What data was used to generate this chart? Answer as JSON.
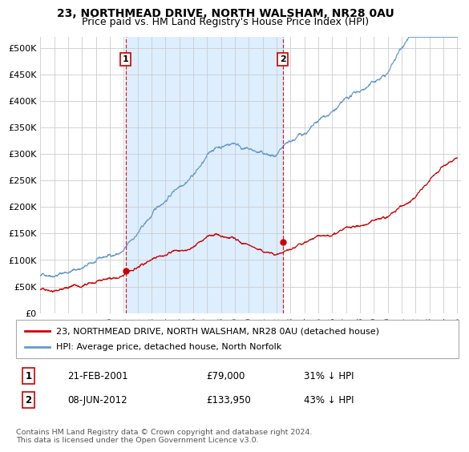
{
  "title": "23, NORTHMEAD DRIVE, NORTH WALSHAM, NR28 0AU",
  "subtitle": "Price paid vs. HM Land Registry's House Price Index (HPI)",
  "legend_line1": "23, NORTHMEAD DRIVE, NORTH WALSHAM, NR28 0AU (detached house)",
  "legend_line2": "HPI: Average price, detached house, North Norfolk",
  "annotation1_label": "1",
  "annotation1_date": "21-FEB-2001",
  "annotation1_price": "£79,000",
  "annotation1_hpi": "31% ↓ HPI",
  "annotation2_label": "2",
  "annotation2_date": "08-JUN-2012",
  "annotation2_price": "£133,950",
  "annotation2_hpi": "43% ↓ HPI",
  "footer": "Contains HM Land Registry data © Crown copyright and database right 2024.\nThis data is licensed under the Open Government Licence v3.0.",
  "sale1_year": 2001.13,
  "sale1_price": 79000,
  "sale2_year": 2012.44,
  "sale2_price": 133950,
  "red_color": "#cc0000",
  "blue_color": "#6699cc",
  "shade_color": "#ddeeff",
  "annotation_color": "#cc0000",
  "ylim_max": 520000,
  "yticks": [
    0,
    50000,
    100000,
    150000,
    200000,
    250000,
    300000,
    350000,
    400000,
    450000,
    500000
  ],
  "xmin": 1995,
  "xmax": 2025.3
}
